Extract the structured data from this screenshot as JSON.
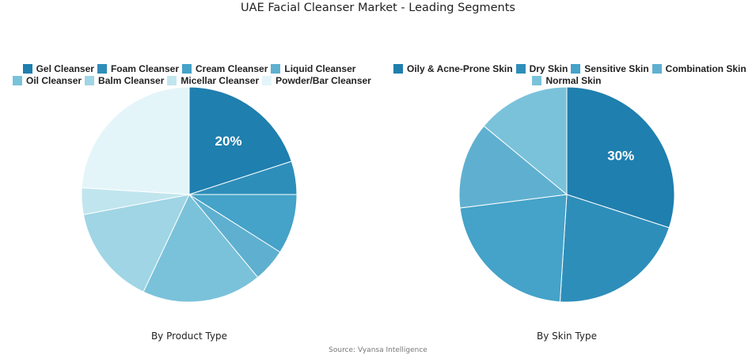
{
  "title": "UAE Facial Cleanser Market - Leading Segments",
  "source": "Source: Vyansa Intelligence",
  "chart_data": [
    {
      "type": "pie",
      "title": "By Product Type",
      "categories": [
        "Gel Cleanser",
        "Foam Cleanser",
        "Cream Cleanser",
        "Liquid Cleanser",
        "Oil Cleanser",
        "Balm Cleanser",
        "Micellar Cleanser",
        "Powder/Bar Cleanser"
      ],
      "values": [
        20,
        5,
        9,
        5,
        18,
        15,
        4,
        24
      ],
      "colors": [
        "#1f7fae",
        "#2e8eba",
        "#45a2c8",
        "#5fb0d0",
        "#7ac2da",
        "#9fd5e4",
        "#c1e5ee",
        "#e4f5f9"
      ],
      "data_labels": [
        "20%",
        "",
        "",
        "",
        "",
        "",
        "",
        ""
      ],
      "legend_position": "top"
    },
    {
      "type": "pie",
      "title": "By Skin Type",
      "categories": [
        "Oily & Acne-Prone Skin",
        "Dry Skin",
        "Sensitive Skin",
        "Combination Skin",
        "Normal Skin"
      ],
      "values": [
        30,
        21,
        22,
        13,
        14
      ],
      "colors": [
        "#1f7fae",
        "#2e8eba",
        "#45a2c8",
        "#5fb0d0",
        "#7ac2da"
      ],
      "data_labels": [
        "30%",
        "",
        "",
        "",
        ""
      ],
      "legend_position": "top"
    }
  ]
}
